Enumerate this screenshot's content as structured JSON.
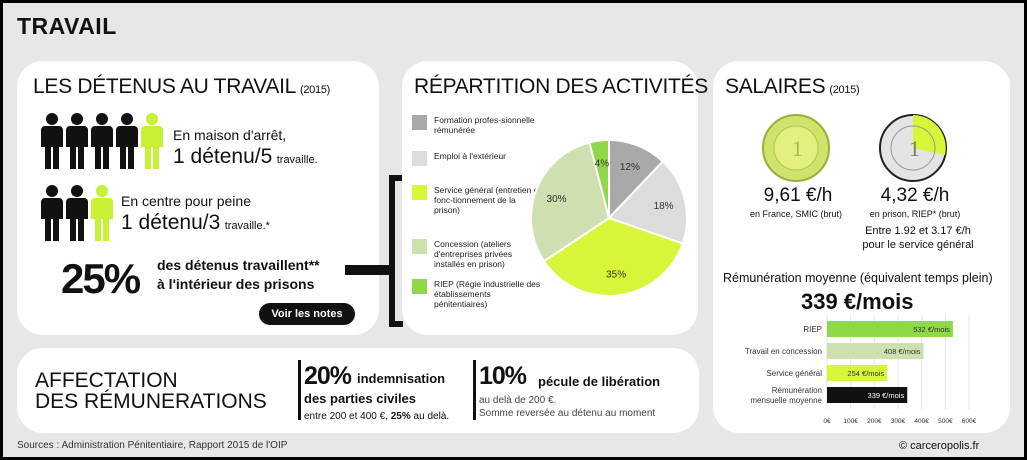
{
  "title": "TRAVAIL",
  "detenus": {
    "heading": "LES DÉTENUS AU TRAVAIL",
    "year": "(2015)",
    "maison_small": "En maison d'arrêt,",
    "maison_big": "1 détenu/5",
    "maison_suffix": "travaille.",
    "centre_small": "En centre pour peine",
    "centre_big": "1 détenu/3",
    "centre_suffix": "travaille.*",
    "pct": "25%",
    "pct_line1": "des détenus travaillent**",
    "pct_line2": "à l'intérieur des prisons",
    "notes_button": "Voir les notes"
  },
  "repartition": {
    "heading": "RÉPARTITION DES ACTIVITÉS",
    "legend": [
      {
        "label": "Formation profes-sionnelle rémunérée",
        "color": "#a9a9a9"
      },
      {
        "label": "Emploi à l'extérieur",
        "color": "#dcdcdc"
      },
      {
        "label": "Service général (entretien et fonc-tionnement de la prison)",
        "color": "#d9f53a"
      },
      {
        "label": "Concession (ateliers d'entreprises privées installés en prison)",
        "color": "#cfe0b0"
      },
      {
        "label": "RIEP (Régie industrielle des établissements pénitentiaires)",
        "color": "#8ed84a"
      }
    ]
  },
  "chart_data": [
    {
      "type": "pie",
      "categories": [
        "Formation professionnelle rémunérée",
        "Emploi à l'extérieur",
        "Service général",
        "Concession",
        "RIEP"
      ],
      "values": [
        12,
        18,
        35,
        30,
        4
      ],
      "labels": [
        "12%",
        "18%",
        "35%",
        "30%",
        "4%"
      ],
      "colors": [
        "#a9a9a9",
        "#dcdcdc",
        "#d9f53a",
        "#cfe0b0",
        "#8ed84a"
      ]
    },
    {
      "type": "bar",
      "orientation": "horizontal",
      "categories": [
        "RIEP",
        "Travail en concession",
        "Service général",
        "Rémunération mensuelle moyenne"
      ],
      "values": [
        532,
        408,
        254,
        339
      ],
      "labels": [
        "532 €/mois",
        "408 €/mois",
        "254 €/mois",
        "339 €/mois"
      ],
      "colors": [
        "#8ed84a",
        "#cfe0b0",
        "#d9f53a",
        "#111111"
      ],
      "xlim": [
        0,
        600
      ],
      "ticks": [
        "0€",
        "100€",
        "200€",
        "300€",
        "400€",
        "500€",
        "600€"
      ],
      "grid": true
    }
  ],
  "salaires": {
    "heading": "SALAIRES",
    "year": "(2015)",
    "france_value": "9,61 €/h",
    "france_caption": "en France, SMIC (brut)",
    "prison_value": "4,32 €/h",
    "prison_caption": "en prison, RIEP* (brut)",
    "service_line1": "Entre 1.92 et 3.17 €/h",
    "service_line2": "pour le service général",
    "moyenne_label": "Rémunération moyenne",
    "moyenne_paren": "(équivalent temps plein)",
    "moyenne_value": "339 €/mois",
    "bar_labels": [
      "RIEP",
      "Travail en concession",
      "Service général",
      "Rémunération mensuelle moyenne"
    ]
  },
  "affectation": {
    "heading_line1": "AFFECTATION",
    "heading_line2": "DES RÉMUNERATIONS",
    "item1_pct": "20%",
    "item1_title_a": "indemnisation",
    "item1_title_b": "des parties civiles",
    "item1_sub_a": "entre 200 et 400 €,",
    "item1_sub_b": "25%",
    "item1_sub_c": "au delà.",
    "item2_pct": "10%",
    "item2_title": "pécule de libération",
    "item2_sub1": "au delà de 200 €.",
    "item2_sub2": "Somme reversée au détenu au moment"
  },
  "footer": {
    "sources": "Sources : Administration Pénitentiaire, Rapport 2015 de l'OIP",
    "credit": "© carceropolis.fr"
  }
}
